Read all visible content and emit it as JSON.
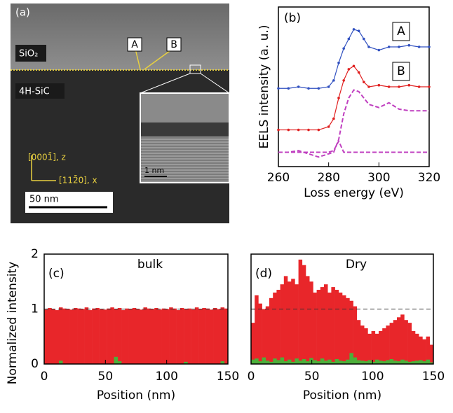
{
  "image_panel": {
    "panel_label": "(a)",
    "layer_top": "SiO₂",
    "layer_bottom": "4H-SiC",
    "point_a": "A",
    "point_b": "B",
    "axis_z": "[0001̄], z",
    "axis_x": "[112̄0], x",
    "scale_bar": "50 nm",
    "inset_scale_bar": "1 nm"
  },
  "chart_data": [
    {
      "type": "line",
      "panel_label": "(b)",
      "xlabel": "Loss energy (eV)",
      "ylabel": "EELS intensity (a. u.)",
      "xlim": [
        260,
        320
      ],
      "xticks": [
        260,
        280,
        300,
        320
      ],
      "ylim": [
        0,
        1
      ],
      "annotations": [
        "A",
        "B"
      ],
      "x": [
        260,
        264,
        268,
        272,
        276,
        280,
        282,
        284,
        286,
        288,
        290,
        292,
        294,
        296,
        300,
        304,
        308,
        312,
        316,
        320
      ],
      "series": [
        {
          "color": "#3050c0",
          "markers": true,
          "values": [
            0.49,
            0.49,
            0.5,
            0.49,
            0.49,
            0.5,
            0.54,
            0.65,
            0.74,
            0.8,
            0.86,
            0.85,
            0.8,
            0.75,
            0.73,
            0.75,
            0.75,
            0.76,
            0.75,
            0.75
          ]
        },
        {
          "color": "#e02020",
          "markers": true,
          "values": [
            0.23,
            0.23,
            0.23,
            0.23,
            0.23,
            0.25,
            0.3,
            0.43,
            0.54,
            0.61,
            0.63,
            0.59,
            0.53,
            0.5,
            0.51,
            0.5,
            0.5,
            0.51,
            0.5,
            0.5
          ]
        },
        {
          "color": "#c040c0",
          "dashed": true,
          "values": [
            0.09,
            0.09,
            0.1,
            0.08,
            0.06,
            0.08,
            0.09,
            0.17,
            0.33,
            0.43,
            0.48,
            0.47,
            0.43,
            0.39,
            0.37,
            0.4,
            0.36,
            0.35,
            0.35,
            0.35
          ]
        },
        {
          "color": "#c040c0",
          "dashed": true,
          "values": [
            0.09,
            0.09,
            0.09,
            0.09,
            0.09,
            0.09,
            0.1,
            0.16,
            0.09,
            0.09,
            0.09,
            0.09,
            0.09,
            0.09,
            0.09,
            0.09,
            0.09,
            0.09,
            0.09,
            0.09
          ]
        }
      ]
    },
    {
      "type": "histogram",
      "panel_label": "(c)",
      "label": "bulk",
      "ylabel": "Normalized intensity",
      "xlabel": "Position (nm)",
      "xlim": [
        0,
        150
      ],
      "xticks": [
        0,
        50,
        100,
        150
      ],
      "ylim": [
        0,
        2
      ],
      "yticks": [
        0,
        1,
        2
      ],
      "ytick_labels": true,
      "hline": 1,
      "bins": [
        0,
        3,
        6,
        9,
        12,
        15,
        18,
        21,
        24,
        27,
        30,
        33,
        36,
        39,
        42,
        45,
        48,
        51,
        54,
        57,
        60,
        63,
        66,
        69,
        72,
        75,
        78,
        81,
        84,
        87,
        90,
        93,
        96,
        99,
        102,
        105,
        108,
        111,
        114,
        117,
        120,
        123,
        126,
        129,
        132,
        135,
        138,
        141,
        144,
        147,
        150
      ],
      "series": [
        {
          "color": "#e8262a",
          "values": [
            0.99,
            1.02,
            1.0,
            0.98,
            1.03,
            1.01,
            1.0,
            0.99,
            1.02,
            1.01,
            1.0,
            1.03,
            0.98,
            1.01,
            1.02,
            1.0,
            0.99,
            1.01,
            1.03,
            1.0,
            1.02,
            0.98,
            1.01,
            1.0,
            1.02,
            1.0,
            0.99,
            1.03,
            1.01,
            1.0,
            1.02,
            0.99,
            1.01,
            1.0,
            1.03,
            1.01,
            0.98,
            1.02,
            1.0,
            1.01,
            0.99,
            1.03,
            1.0,
            1.02,
            1.01,
            0.99,
            1.02,
            1.0,
            1.03,
            1.01
          ]
        },
        {
          "color": "#4caf3a",
          "values": [
            0,
            0,
            0,
            0,
            0.06,
            0,
            0,
            0,
            0,
            0,
            0,
            0,
            0,
            0,
            0,
            0,
            0,
            0,
            0,
            0.13,
            0.05,
            0,
            0,
            0,
            0,
            0,
            0,
            0,
            0,
            0,
            0,
            0,
            0,
            0,
            0,
            0,
            0,
            0,
            0.04,
            0,
            0,
            0,
            0,
            0,
            0,
            0,
            0,
            0,
            0.05,
            0
          ]
        }
      ]
    },
    {
      "type": "histogram",
      "panel_label": "(d)",
      "label": "Dry",
      "xlabel": "Position (nm)",
      "xlim": [
        0,
        150
      ],
      "xticks": [
        0,
        50,
        100,
        150
      ],
      "ylim": [
        0,
        2
      ],
      "yticks": [
        0,
        1,
        2
      ],
      "ytick_labels": false,
      "hline": 1,
      "bins": [
        0,
        3,
        6,
        9,
        12,
        15,
        18,
        21,
        24,
        27,
        30,
        33,
        36,
        39,
        42,
        45,
        48,
        51,
        54,
        57,
        60,
        63,
        66,
        69,
        72,
        75,
        78,
        81,
        84,
        87,
        90,
        93,
        96,
        99,
        102,
        105,
        108,
        111,
        114,
        117,
        120,
        123,
        126,
        129,
        132,
        135,
        138,
        141,
        144,
        147,
        150
      ],
      "series": [
        {
          "color": "#e8262a",
          "values": [
            0.75,
            1.25,
            1.1,
            1.0,
            1.05,
            1.2,
            1.3,
            1.35,
            1.45,
            1.6,
            1.5,
            1.55,
            1.45,
            1.9,
            1.8,
            1.6,
            1.5,
            1.3,
            1.35,
            1.4,
            1.45,
            1.3,
            1.4,
            1.35,
            1.3,
            1.25,
            1.2,
            1.15,
            1.05,
            0.8,
            0.7,
            0.65,
            0.55,
            0.6,
            0.55,
            0.6,
            0.65,
            0.7,
            0.75,
            0.8,
            0.85,
            0.9,
            0.8,
            0.75,
            0.6,
            0.55,
            0.5,
            0.45,
            0.5,
            0.35
          ]
        },
        {
          "color": "#4caf3a",
          "values": [
            0.08,
            0.1,
            0.05,
            0.12,
            0.06,
            0.04,
            0.1,
            0.07,
            0.12,
            0.05,
            0.08,
            0.04,
            0.1,
            0.06,
            0.09,
            0.05,
            0.11,
            0.07,
            0.05,
            0.1,
            0.06,
            0.08,
            0.04,
            0.09,
            0.06,
            0.05,
            0.08,
            0.2,
            0.12,
            0.07,
            0.06,
            0.05,
            0.07,
            0.04,
            0.08,
            0.06,
            0.05,
            0.07,
            0.09,
            0.06,
            0.05,
            0.08,
            0.06,
            0.04,
            0.05,
            0.06,
            0.07,
            0.05,
            0.08,
            0.03
          ]
        }
      ]
    }
  ]
}
